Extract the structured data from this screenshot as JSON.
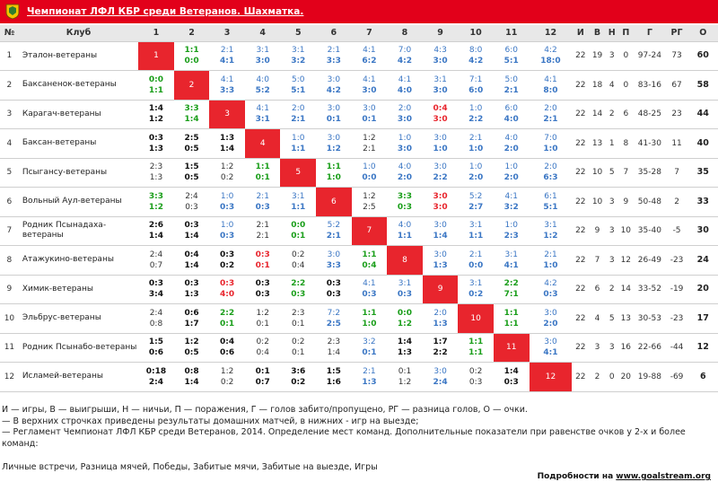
{
  "header": {
    "title": "Чемпионат ЛФЛ КБР среди Ветеранов. Шахматка.",
    "logo_icon": "coat-of-arms-icon"
  },
  "columns": [
    "№",
    "Клуб",
    "1",
    "2",
    "3",
    "4",
    "5",
    "6",
    "7",
    "8",
    "9",
    "10",
    "11",
    "12",
    "И",
    "В",
    "Н",
    "П",
    "Г",
    "РГ",
    "О"
  ],
  "rows": [
    {
      "n": "1",
      "club": "Эталон-ветераны",
      "cells": [
        {
          "diag": "1"
        },
        {
          "h": "1:1",
          "a": "0:0",
          "c": "g"
        },
        {
          "h": "2:1",
          "a": "4:1",
          "c": "b"
        },
        {
          "h": "3:1",
          "a": "3:0",
          "c": "b"
        },
        {
          "h": "3:1",
          "a": "3:2",
          "c": "b"
        },
        {
          "h": "2:1",
          "a": "3:3",
          "c": "b"
        },
        {
          "h": "4:1",
          "a": "6:2",
          "c": "b"
        },
        {
          "h": "7:0",
          "a": "4:2",
          "c": "b"
        },
        {
          "h": "4:3",
          "a": "3:0",
          "c": "b"
        },
        {
          "h": "8:0",
          "a": "4:2",
          "c": "b"
        },
        {
          "h": "6:0",
          "a": "5:1",
          "c": "b"
        },
        {
          "h": "4:2",
          "a": "18:0",
          "c": "b"
        }
      ],
      "stats": [
        "22",
        "19",
        "3",
        "0",
        "97-24",
        "73",
        "60"
      ]
    },
    {
      "n": "2",
      "club": "Баксаненок-ветераны",
      "cells": [
        {
          "h": "0:0",
          "a": "1:1",
          "c": "g"
        },
        {
          "diag": "2"
        },
        {
          "h": "4:1",
          "a": "3:3",
          "c": "b"
        },
        {
          "h": "4:0",
          "a": "5:2",
          "c": "b"
        },
        {
          "h": "5:0",
          "a": "5:1",
          "c": "b"
        },
        {
          "h": "3:0",
          "a": "4:2",
          "c": "b"
        },
        {
          "h": "4:1",
          "a": "3:0",
          "c": "b"
        },
        {
          "h": "4:1",
          "a": "4:0",
          "c": "b"
        },
        {
          "h": "3:1",
          "a": "3:0",
          "c": "b"
        },
        {
          "h": "7:1",
          "a": "6:0",
          "c": "b"
        },
        {
          "h": "5:0",
          "a": "2:1",
          "c": "b"
        },
        {
          "h": "4:1",
          "a": "8:0",
          "c": "b"
        }
      ],
      "stats": [
        "22",
        "18",
        "4",
        "0",
        "83-16",
        "67",
        "58"
      ]
    },
    {
      "n": "3",
      "club": "Карагач-ветераны",
      "cells": [
        {
          "h": "1:4",
          "a": "1:2",
          "c": "w"
        },
        {
          "h": "3:3",
          "a": "1:4",
          "c": "g"
        },
        {
          "diag": "3"
        },
        {
          "h": "4:1",
          "a": "3:1",
          "c": "b"
        },
        {
          "h": "2:0",
          "a": "2:1",
          "c": "b"
        },
        {
          "h": "3:0",
          "a": "0:1",
          "c": "b"
        },
        {
          "h": "3:0",
          "a": "0:1",
          "c": "b"
        },
        {
          "h": "2:0",
          "a": "3:0",
          "c": "b"
        },
        {
          "h": "0:4",
          "a": "3:0",
          "c": "r"
        },
        {
          "h": "1:0",
          "a": "2:2",
          "c": "b"
        },
        {
          "h": "6:0",
          "a": "4:0",
          "c": "b"
        },
        {
          "h": "2:0",
          "a": "2:1",
          "c": "b"
        }
      ],
      "stats": [
        "22",
        "14",
        "2",
        "6",
        "48-25",
        "23",
        "44"
      ]
    },
    {
      "n": "4",
      "club": "Баксан-ветераны",
      "cells": [
        {
          "h": "0:3",
          "a": "1:3",
          "c": "w"
        },
        {
          "h": "2:5",
          "a": "0:5",
          "c": "w"
        },
        {
          "h": "1:3",
          "a": "1:4",
          "c": "w"
        },
        {
          "diag": "4"
        },
        {
          "h": "1:0",
          "a": "1:1",
          "c": "b"
        },
        {
          "h": "3:0",
          "a": "1:2",
          "c": "b"
        },
        {
          "h": "1:2",
          "a": "2:1",
          "c": "n"
        },
        {
          "h": "1:0",
          "a": "3:0",
          "c": "b"
        },
        {
          "h": "3:0",
          "a": "1:0",
          "c": "b"
        },
        {
          "h": "2:1",
          "a": "1:0",
          "c": "b"
        },
        {
          "h": "4:0",
          "a": "2:0",
          "c": "b"
        },
        {
          "h": "7:0",
          "a": "1:0",
          "c": "b"
        }
      ],
      "stats": [
        "22",
        "13",
        "1",
        "8",
        "41-30",
        "11",
        "40"
      ]
    },
    {
      "n": "5",
      "club": "Псыгансу-ветераны",
      "cells": [
        {
          "h": "2:3",
          "a": "1:3",
          "c": "n"
        },
        {
          "h": "1:5",
          "a": "0:5",
          "c": "w"
        },
        {
          "h": "1:2",
          "a": "0:2",
          "c": "n"
        },
        {
          "h": "1:1",
          "a": "0:1",
          "c": "g"
        },
        {
          "diag": "5"
        },
        {
          "h": "1:1",
          "a": "1:0",
          "c": "g"
        },
        {
          "h": "1:0",
          "a": "0:0",
          "c": "b"
        },
        {
          "h": "4:0",
          "a": "2:0",
          "c": "b"
        },
        {
          "h": "3:0",
          "a": "2:2",
          "c": "b"
        },
        {
          "h": "1:0",
          "a": "2:0",
          "c": "b"
        },
        {
          "h": "1:0",
          "a": "2:0",
          "c": "b"
        },
        {
          "h": "2:0",
          "a": "6:3",
          "c": "b"
        }
      ],
      "stats": [
        "22",
        "10",
        "5",
        "7",
        "35-28",
        "7",
        "35"
      ]
    },
    {
      "n": "6",
      "club": "Вольный Аул-ветераны",
      "cells": [
        {
          "h": "3:3",
          "a": "1:2",
          "c": "g"
        },
        {
          "h": "2:4",
          "a": "0:3",
          "c": "n"
        },
        {
          "h": "1:0",
          "a": "0:3",
          "c": "b"
        },
        {
          "h": "2:1",
          "a": "0:3",
          "c": "b"
        },
        {
          "h": "3:1",
          "a": "1:1",
          "c": "b"
        },
        {
          "diag": "6"
        },
        {
          "h": "1:2",
          "a": "2:5",
          "c": "n"
        },
        {
          "h": "3:3",
          "a": "0:3",
          "c": "g"
        },
        {
          "h": "3:0",
          "a": "3:0",
          "c": "r"
        },
        {
          "h": "5:2",
          "a": "2:7",
          "c": "b"
        },
        {
          "h": "4:1",
          "a": "3:2",
          "c": "b"
        },
        {
          "h": "6:1",
          "a": "5:1",
          "c": "b"
        }
      ],
      "stats": [
        "22",
        "10",
        "3",
        "9",
        "50-48",
        "2",
        "33"
      ]
    },
    {
      "n": "7",
      "club": "Родник Псынадаха-ветераны",
      "cells": [
        {
          "h": "2:6",
          "a": "1:4",
          "c": "w"
        },
        {
          "h": "0:3",
          "a": "1:4",
          "c": "w"
        },
        {
          "h": "1:0",
          "a": "0:3",
          "c": "b"
        },
        {
          "h": "2:1",
          "a": "2:1",
          "c": "n"
        },
        {
          "h": "0:0",
          "a": "0:1",
          "c": "g"
        },
        {
          "h": "5:2",
          "a": "2:1",
          "c": "b"
        },
        {
          "diag": "7"
        },
        {
          "h": "4:0",
          "a": "1:1",
          "c": "b"
        },
        {
          "h": "3:0",
          "a": "1:4",
          "c": "b"
        },
        {
          "h": "3:1",
          "a": "1:1",
          "c": "b"
        },
        {
          "h": "1:0",
          "a": "2:3",
          "c": "b"
        },
        {
          "h": "3:1",
          "a": "1:2",
          "c": "b"
        }
      ],
      "stats": [
        "22",
        "9",
        "3",
        "10",
        "35-40",
        "-5",
        "30"
      ]
    },
    {
      "n": "8",
      "club": "Атажукино-ветераны",
      "cells": [
        {
          "h": "2:4",
          "a": "0:7",
          "c": "n"
        },
        {
          "h": "0:4",
          "a": "1:4",
          "c": "w"
        },
        {
          "h": "0:3",
          "a": "0:2",
          "c": "w"
        },
        {
          "h": "0:3",
          "a": "0:1",
          "c": "r"
        },
        {
          "h": "0:2",
          "a": "0:4",
          "c": "n"
        },
        {
          "h": "3:0",
          "a": "3:3",
          "c": "b"
        },
        {
          "h": "1:1",
          "a": "0:4",
          "c": "g"
        },
        {
          "diag": "8"
        },
        {
          "h": "3:0",
          "a": "1:3",
          "c": "b"
        },
        {
          "h": "2:1",
          "a": "0:0",
          "c": "b"
        },
        {
          "h": "3:1",
          "a": "4:1",
          "c": "b"
        },
        {
          "h": "2:1",
          "a": "1:0",
          "c": "b"
        }
      ],
      "stats": [
        "22",
        "7",
        "3",
        "12",
        "26-49",
        "-23",
        "24"
      ]
    },
    {
      "n": "9",
      "club": "Химик-ветераны",
      "cells": [
        {
          "h": "0:3",
          "a": "3:4",
          "c": "w"
        },
        {
          "h": "0:3",
          "a": "1:3",
          "c": "w"
        },
        {
          "h": "0:3",
          "a": "4:0",
          "c": "r"
        },
        {
          "h": "0:3",
          "a": "0:3",
          "c": "w"
        },
        {
          "h": "2:2",
          "a": "0:3",
          "c": "g"
        },
        {
          "h": "0:3",
          "a": "0:3",
          "c": "w"
        },
        {
          "h": "4:1",
          "a": "0:3",
          "c": "b"
        },
        {
          "h": "3:1",
          "a": "0:3",
          "c": "b"
        },
        {
          "diag": "9"
        },
        {
          "h": "3:1",
          "a": "0:2",
          "c": "b"
        },
        {
          "h": "2:2",
          "a": "7:1",
          "c": "g"
        },
        {
          "h": "4:2",
          "a": "0:3",
          "c": "b"
        }
      ],
      "stats": [
        "22",
        "6",
        "2",
        "14",
        "33-52",
        "-19",
        "20"
      ]
    },
    {
      "n": "10",
      "club": "Эльбрус-ветераны",
      "cells": [
        {
          "h": "2:4",
          "a": "0:8",
          "c": "n"
        },
        {
          "h": "0:6",
          "a": "1:7",
          "c": "w"
        },
        {
          "h": "2:2",
          "a": "0:1",
          "c": "g"
        },
        {
          "h": "1:2",
          "a": "0:1",
          "c": "n"
        },
        {
          "h": "2:3",
          "a": "0:1",
          "c": "n"
        },
        {
          "h": "7:2",
          "a": "2:5",
          "c": "b"
        },
        {
          "h": "1:1",
          "a": "1:0",
          "c": "g"
        },
        {
          "h": "0:0",
          "a": "1:2",
          "c": "g"
        },
        {
          "h": "2:0",
          "a": "1:3",
          "c": "b"
        },
        {
          "diag": "10"
        },
        {
          "h": "1:1",
          "a": "1:1",
          "c": "g"
        },
        {
          "h": "3:0",
          "a": "2:0",
          "c": "b"
        }
      ],
      "stats": [
        "22",
        "4",
        "5",
        "13",
        "30-53",
        "-23",
        "17"
      ]
    },
    {
      "n": "11",
      "club": "Родник Псынабо-ветераны",
      "cells": [
        {
          "h": "1:5",
          "a": "0:6",
          "c": "w"
        },
        {
          "h": "1:2",
          "a": "0:5",
          "c": "w"
        },
        {
          "h": "0:4",
          "a": "0:6",
          "c": "w"
        },
        {
          "h": "0:2",
          "a": "0:4",
          "c": "n"
        },
        {
          "h": "0:2",
          "a": "0:1",
          "c": "n"
        },
        {
          "h": "2:3",
          "a": "1:4",
          "c": "n"
        },
        {
          "h": "3:2",
          "a": "0:1",
          "c": "b"
        },
        {
          "h": "1:4",
          "a": "1:3",
          "c": "w"
        },
        {
          "h": "1:7",
          "a": "2:2",
          "c": "w"
        },
        {
          "h": "1:1",
          "a": "1:1",
          "c": "g"
        },
        {
          "diag": "11"
        },
        {
          "h": "3:0",
          "a": "4:1",
          "c": "b"
        }
      ],
      "stats": [
        "22",
        "3",
        "3",
        "16",
        "22-66",
        "-44",
        "12"
      ]
    },
    {
      "n": "12",
      "club": "Исламей-ветераны",
      "cells": [
        {
          "h": "0:18",
          "a": "2:4",
          "c": "w"
        },
        {
          "h": "0:8",
          "a": "1:4",
          "c": "w"
        },
        {
          "h": "1:2",
          "a": "0:2",
          "c": "n"
        },
        {
          "h": "0:1",
          "a": "0:7",
          "c": "w"
        },
        {
          "h": "3:6",
          "a": "0:2",
          "c": "w"
        },
        {
          "h": "1:5",
          "a": "1:6",
          "c": "w"
        },
        {
          "h": "2:1",
          "a": "1:3",
          "c": "b"
        },
        {
          "h": "0:1",
          "a": "1:2",
          "c": "n"
        },
        {
          "h": "3:0",
          "a": "2:4",
          "c": "b"
        },
        {
          "h": "0:2",
          "a": "0:3",
          "c": "n"
        },
        {
          "h": "1:4",
          "a": "0:3",
          "c": "w"
        },
        {
          "diag": "12"
        }
      ],
      "stats": [
        "22",
        "2",
        "0",
        "20",
        "19-88",
        "-69",
        "6"
      ]
    }
  ],
  "legend": [
    "И — игры, В — выигрыши, Н — ничьи, П — поражения, Г — голов забито/пропущено, РГ — разница голов, О — очки.",
    "— В верхних строчках приведены результаты домашних матчей, в нижних - игр на выезде;",
    "— Регламент Чемпионат ЛФЛ КБР среди Ветеранов, 2014. Определение мест команд. Дополнительные показатели при равенстве очков у 2-х и более команд:"
  ],
  "tiebreak": "Личные встречи, Разница мячей, Победы, Забитые мячи, Забитые на выезде, Игры",
  "source": {
    "prefix": "Подробности на ",
    "link": "www.goalstream.org"
  }
}
